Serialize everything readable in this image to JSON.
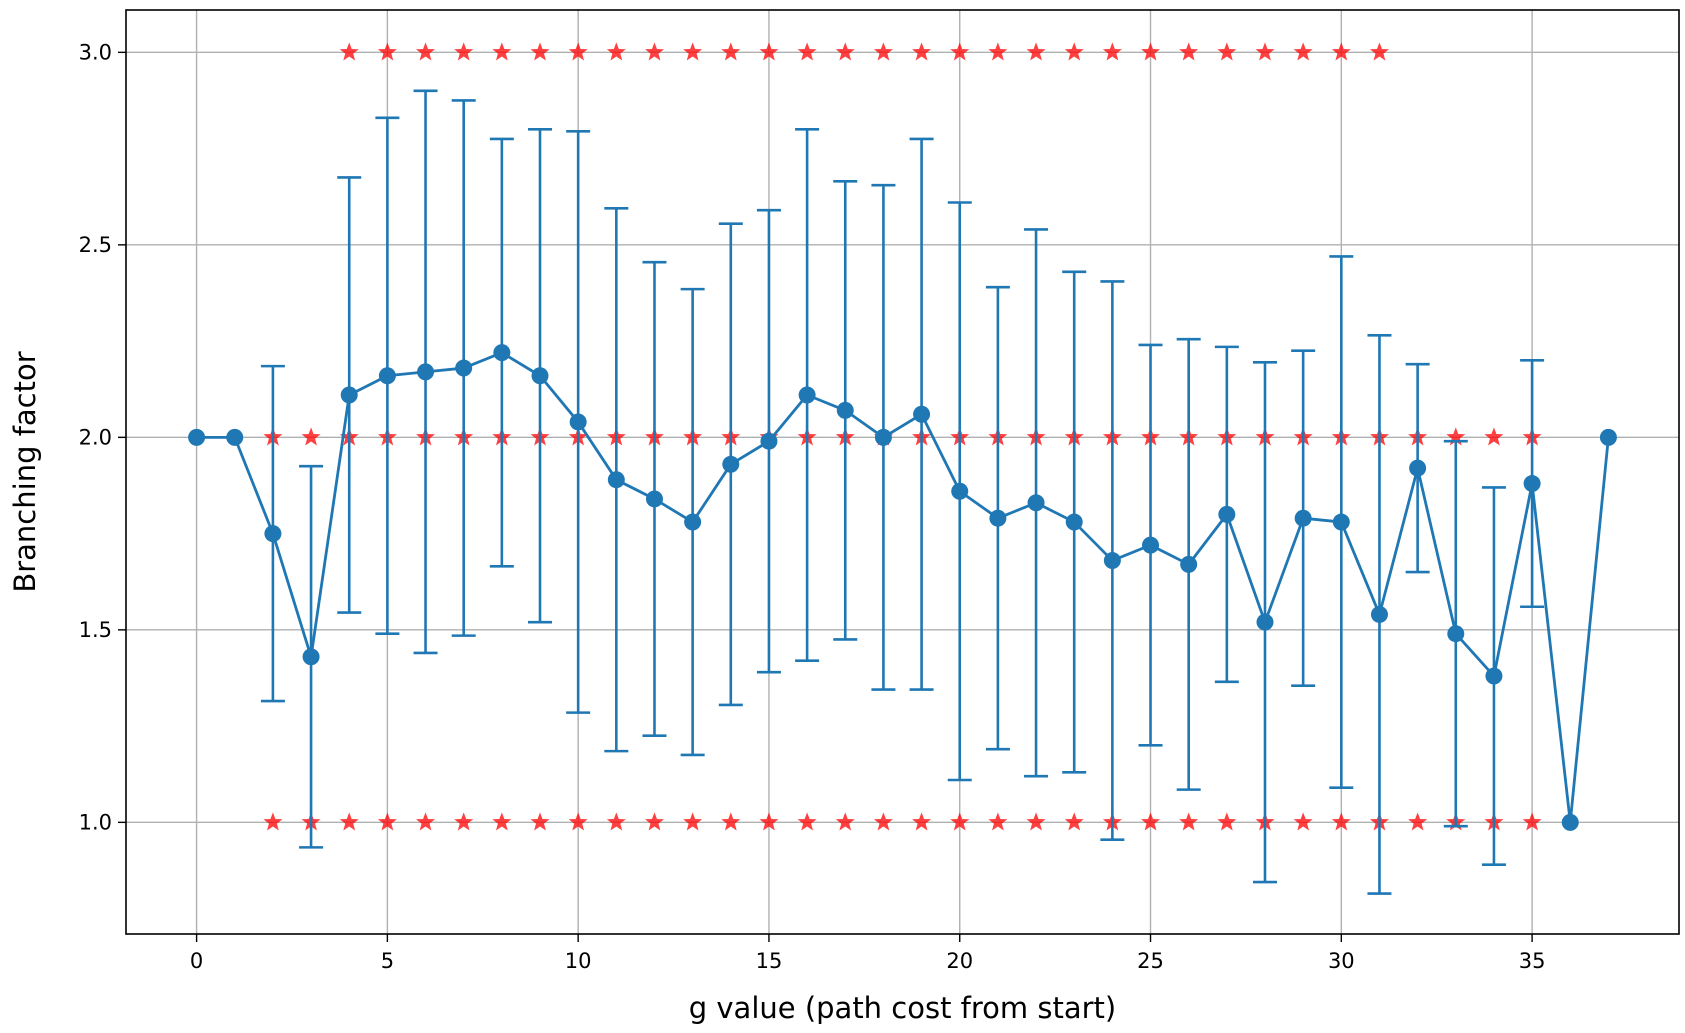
{
  "chart_data": {
    "type": "line",
    "title": "",
    "xlabel": "g value (path cost from start)",
    "ylabel": "Branching factor",
    "xlim": [
      -1.85,
      38.85
    ],
    "ylim": [
      0.71,
      3.11
    ],
    "grid": true,
    "legend": "none",
    "xticks": [
      0,
      5,
      10,
      15,
      20,
      25,
      30,
      35
    ],
    "yticks": [
      1.0,
      1.5,
      2.0,
      2.5,
      3.0
    ],
    "xtick_labels": [
      "0",
      "5",
      "10",
      "15",
      "20",
      "25",
      "30",
      "35"
    ],
    "ytick_labels": [
      "1.0",
      "1.5",
      "2.0",
      "2.5",
      "3.0"
    ],
    "colors": {
      "series": "#1f77b4",
      "markers": "#ff0000"
    },
    "series": [
      {
        "kind": "errorbar-line",
        "x": [
          0,
          1,
          2,
          3,
          4,
          5,
          6,
          7,
          8,
          9,
          10,
          11,
          12,
          13,
          14,
          15,
          16,
          17,
          18,
          19,
          20,
          21,
          22,
          23,
          24,
          25,
          26,
          27,
          28,
          29,
          30,
          31,
          32,
          33,
          34,
          35,
          36,
          37
        ],
        "y": [
          2.0,
          2.0,
          1.75,
          1.43,
          2.11,
          2.16,
          2.17,
          2.18,
          2.22,
          2.16,
          2.04,
          1.89,
          1.84,
          1.78,
          1.93,
          1.99,
          2.11,
          2.07,
          2.0,
          2.06,
          1.86,
          1.79,
          1.83,
          1.78,
          1.68,
          1.72,
          1.67,
          1.8,
          1.52,
          1.79,
          1.78,
          1.54,
          1.92,
          1.49,
          1.38,
          1.88,
          1.0,
          2.0
        ],
        "yerr": [
          0,
          0,
          0.435,
          0.495,
          0.565,
          0.67,
          0.73,
          0.695,
          0.555,
          0.64,
          0.755,
          0.705,
          0.615,
          0.605,
          0.625,
          0.6,
          0.69,
          0.595,
          0.655,
          0.715,
          0.75,
          0.6,
          0.71,
          0.65,
          0.725,
          0.52,
          0.585,
          0.435,
          0.675,
          0.435,
          0.69,
          0.725,
          0.27,
          0.5,
          0.49,
          0.32,
          0,
          0
        ]
      },
      {
        "kind": "scatter-star",
        "points": [
          [
            4,
            3.0
          ],
          [
            5,
            3.0
          ],
          [
            6,
            3.0
          ],
          [
            7,
            3.0
          ],
          [
            8,
            3.0
          ],
          [
            9,
            3.0
          ],
          [
            10,
            3.0
          ],
          [
            11,
            3.0
          ],
          [
            12,
            3.0
          ],
          [
            13,
            3.0
          ],
          [
            14,
            3.0
          ],
          [
            15,
            3.0
          ],
          [
            16,
            3.0
          ],
          [
            17,
            3.0
          ],
          [
            18,
            3.0
          ],
          [
            19,
            3.0
          ],
          [
            20,
            3.0
          ],
          [
            21,
            3.0
          ],
          [
            22,
            3.0
          ],
          [
            23,
            3.0
          ],
          [
            24,
            3.0
          ],
          [
            25,
            3.0
          ],
          [
            26,
            3.0
          ],
          [
            27,
            3.0
          ],
          [
            28,
            3.0
          ],
          [
            29,
            3.0
          ],
          [
            30,
            3.0
          ],
          [
            31,
            3.0
          ],
          [
            2,
            2.0
          ],
          [
            3,
            2.0
          ],
          [
            4,
            2.0
          ],
          [
            5,
            2.0
          ],
          [
            6,
            2.0
          ],
          [
            7,
            2.0
          ],
          [
            8,
            2.0
          ],
          [
            9,
            2.0
          ],
          [
            10,
            2.0
          ],
          [
            11,
            2.0
          ],
          [
            12,
            2.0
          ],
          [
            13,
            2.0
          ],
          [
            14,
            2.0
          ],
          [
            15,
            2.0
          ],
          [
            16,
            2.0
          ],
          [
            17,
            2.0
          ],
          [
            18,
            2.0
          ],
          [
            19,
            2.0
          ],
          [
            20,
            2.0
          ],
          [
            21,
            2.0
          ],
          [
            22,
            2.0
          ],
          [
            23,
            2.0
          ],
          [
            24,
            2.0
          ],
          [
            25,
            2.0
          ],
          [
            26,
            2.0
          ],
          [
            27,
            2.0
          ],
          [
            28,
            2.0
          ],
          [
            29,
            2.0
          ],
          [
            30,
            2.0
          ],
          [
            31,
            2.0
          ],
          [
            32,
            2.0
          ],
          [
            33,
            2.0
          ],
          [
            34,
            2.0
          ],
          [
            35,
            2.0
          ],
          [
            2,
            1.0
          ],
          [
            3,
            1.0
          ],
          [
            4,
            1.0
          ],
          [
            5,
            1.0
          ],
          [
            6,
            1.0
          ],
          [
            7,
            1.0
          ],
          [
            8,
            1.0
          ],
          [
            9,
            1.0
          ],
          [
            10,
            1.0
          ],
          [
            11,
            1.0
          ],
          [
            12,
            1.0
          ],
          [
            13,
            1.0
          ],
          [
            14,
            1.0
          ],
          [
            15,
            1.0
          ],
          [
            16,
            1.0
          ],
          [
            17,
            1.0
          ],
          [
            18,
            1.0
          ],
          [
            19,
            1.0
          ],
          [
            20,
            1.0
          ],
          [
            21,
            1.0
          ],
          [
            22,
            1.0
          ],
          [
            23,
            1.0
          ],
          [
            24,
            1.0
          ],
          [
            25,
            1.0
          ],
          [
            26,
            1.0
          ],
          [
            27,
            1.0
          ],
          [
            28,
            1.0
          ],
          [
            29,
            1.0
          ],
          [
            30,
            1.0
          ],
          [
            31,
            1.0
          ],
          [
            32,
            1.0
          ],
          [
            33,
            1.0
          ],
          [
            34,
            1.0
          ],
          [
            35,
            1.0
          ]
        ]
      }
    ]
  }
}
